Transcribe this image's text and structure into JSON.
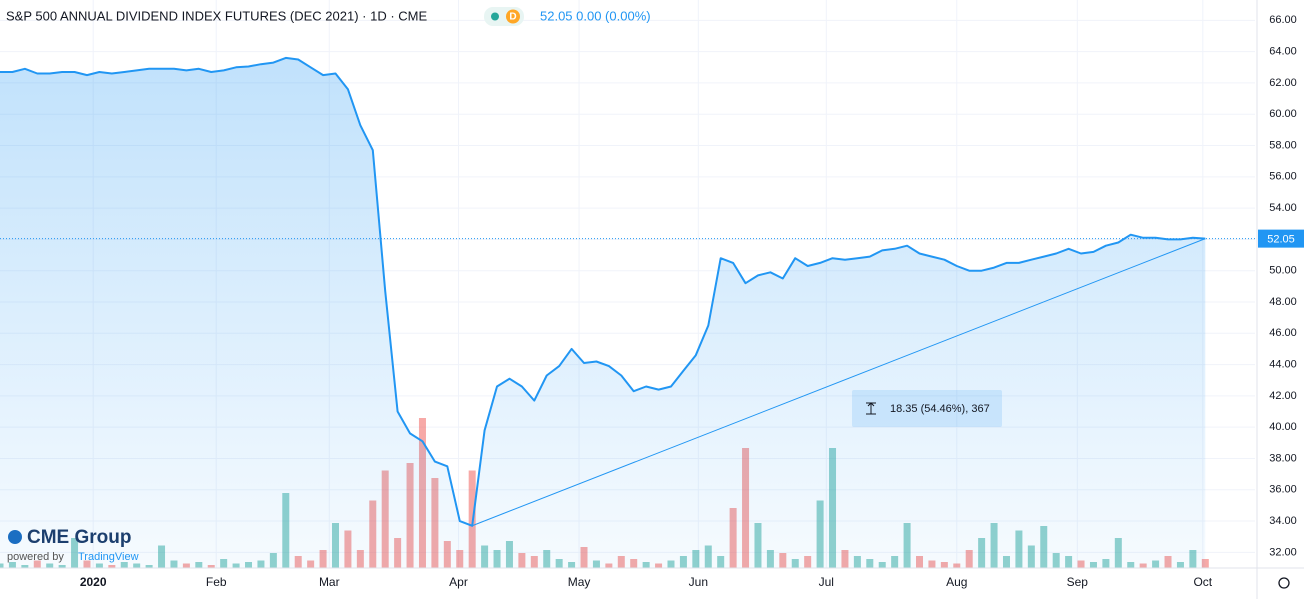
{
  "chart_data": {
    "type": "area",
    "title": "S&P 500 ANNUAL DIVIDEND INDEX FUTURES (DEC 2021) · 1D · CME",
    "badge": "D",
    "price_text": "52.05 0.00 (0.00%)",
    "logo": "CME Group",
    "powered_by": "powered by",
    "provider": "TradingView",
    "color": "#2196f3",
    "grid": true,
    "ylim": [
      31,
      67.3
    ],
    "yticks": [
      {
        "value": 32,
        "label": "32.00"
      },
      {
        "value": 34,
        "label": "34.00"
      },
      {
        "value": 36,
        "label": "36.00"
      },
      {
        "value": 38,
        "label": "38.00"
      },
      {
        "value": 40,
        "label": "40.00"
      },
      {
        "value": 42,
        "label": "42.00"
      },
      {
        "value": 44,
        "label": "44.00"
      },
      {
        "value": 46,
        "label": "46.00"
      },
      {
        "value": 48,
        "label": "48.00"
      },
      {
        "value": 50,
        "label": "50.00"
      },
      {
        "value": 52,
        "label": "52.00"
      },
      {
        "value": 54,
        "label": "54.00"
      },
      {
        "value": 56,
        "label": "56.00"
      },
      {
        "value": 58,
        "label": "58.00"
      },
      {
        "value": 60,
        "label": "60.00"
      },
      {
        "value": 62,
        "label": "62.00"
      },
      {
        "value": 64,
        "label": "64.00"
      },
      {
        "value": 66,
        "label": "66.00"
      }
    ],
    "xlim": [
      0,
      101
    ],
    "xticks": [
      {
        "value": 7.5,
        "label": "2020"
      },
      {
        "value": 17.4,
        "label": "Feb"
      },
      {
        "value": 26.5,
        "label": "Mar"
      },
      {
        "value": 36.9,
        "label": "Apr"
      },
      {
        "value": 46.6,
        "label": "May"
      },
      {
        "value": 56.2,
        "label": "Jun"
      },
      {
        "value": 66.5,
        "label": "Jul"
      },
      {
        "value": 77,
        "label": "Aug"
      },
      {
        "value": 86.7,
        "label": "Sep"
      },
      {
        "value": 96.8,
        "label": "Oct"
      }
    ],
    "last_price": {
      "value": 52.05,
      "label": "52.05"
    },
    "measure": {
      "label": "18.35 (54.46%), 367",
      "from": 33.7,
      "to": 52.05
    },
    "price": {
      "values": [
        62.7,
        62.7,
        62.9,
        62.6,
        62.6,
        62.7,
        62.7,
        62.5,
        62.7,
        62.6,
        62.7,
        62.8,
        62.9,
        62.9,
        62.9,
        62.8,
        62.9,
        62.7,
        62.8,
        63.0,
        63.05,
        63.2,
        63.3,
        63.6,
        63.5,
        63.0,
        62.5,
        62.6,
        61.6,
        59.3,
        57.7,
        48.7,
        41.0,
        39.6,
        39.1,
        37.8,
        37.5,
        34.0,
        33.7,
        39.8,
        42.6,
        43.1,
        42.6,
        41.7,
        43.3,
        43.9,
        45.0,
        44.1,
        44.2,
        43.9,
        43.3,
        42.3,
        42.6,
        42.4,
        42.6,
        43.6,
        44.6,
        46.5,
        50.8,
        50.5,
        49.2,
        49.7,
        49.9,
        49.5,
        50.8,
        50.3,
        50.5,
        50.8,
        50.7,
        50.8,
        50.9,
        51.3,
        51.4,
        51.6,
        51.1,
        50.9,
        50.7,
        50.3,
        50.0,
        50.0,
        50.2,
        50.5,
        50.5,
        50.7,
        50.9,
        51.1,
        51.4,
        51.1,
        51.2,
        51.6,
        51.8,
        52.3,
        52.1,
        52.1,
        52.0,
        52.0,
        52.1,
        52.05
      ]
    },
    "volume": {
      "up_color": "rgba(38,166,154,0.5)",
      "down_color": "rgba(239,83,80,0.5)",
      "vlim": [
        0,
        100
      ],
      "values": [
        3,
        4,
        2,
        5,
        3,
        2,
        20,
        5,
        3,
        2,
        4,
        3,
        2,
        15,
        5,
        3,
        4,
        2,
        6,
        3,
        4,
        5,
        10,
        50,
        8,
        5,
        12,
        30,
        25,
        12,
        45,
        65,
        20,
        70,
        100,
        60,
        18,
        12,
        65,
        15,
        12,
        18,
        10,
        8,
        12,
        6,
        4,
        14,
        5,
        3,
        8,
        6,
        4,
        3,
        5,
        8,
        12,
        15,
        8,
        40,
        80,
        30,
        12,
        10,
        6,
        8,
        45,
        80,
        12,
        8,
        6,
        4,
        8,
        30,
        8,
        5,
        4,
        3,
        12,
        20,
        30,
        8,
        25,
        15,
        28,
        10,
        8,
        5,
        4,
        6,
        20,
        4,
        3,
        5,
        8,
        4,
        12,
        6
      ]
    }
  }
}
